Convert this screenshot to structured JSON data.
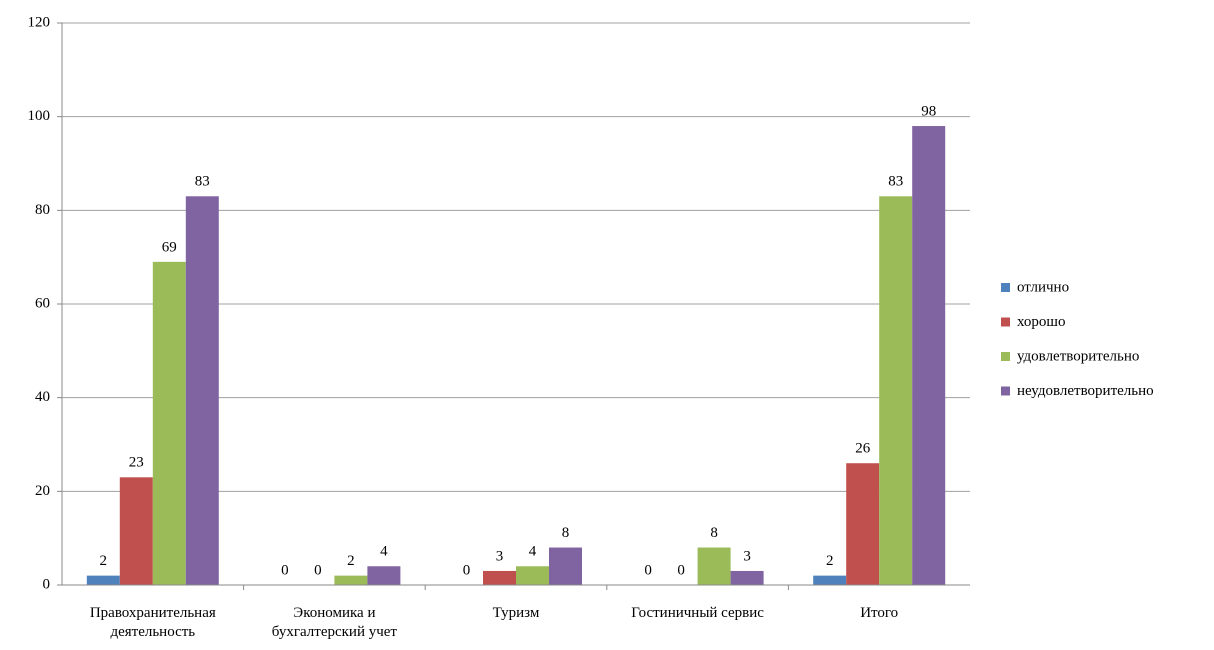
{
  "chart_data": {
    "type": "bar",
    "categories": [
      "Правохранительная деятельность",
      "Экономика и бухгалтерский учет",
      "Туризм",
      "Гостиничный сервис",
      "Итого"
    ],
    "series": [
      {
        "name": "отлично",
        "color": "#4f81bd",
        "values": [
          2,
          0,
          0,
          0,
          2
        ]
      },
      {
        "name": "хорошо",
        "color": "#c0504d",
        "values": [
          23,
          0,
          3,
          0,
          26
        ]
      },
      {
        "name": "удовлетворительно",
        "color": "#9bbb59",
        "values": [
          69,
          2,
          4,
          8,
          83
        ]
      },
      {
        "name": "неудовлетворительно",
        "color": "#8064a2",
        "values": [
          83,
          4,
          8,
          3,
          98
        ]
      }
    ],
    "ylim": [
      0,
      120
    ],
    "yticks": [
      0,
      20,
      40,
      60,
      80,
      100,
      120
    ],
    "grid": true,
    "legend": "right"
  }
}
